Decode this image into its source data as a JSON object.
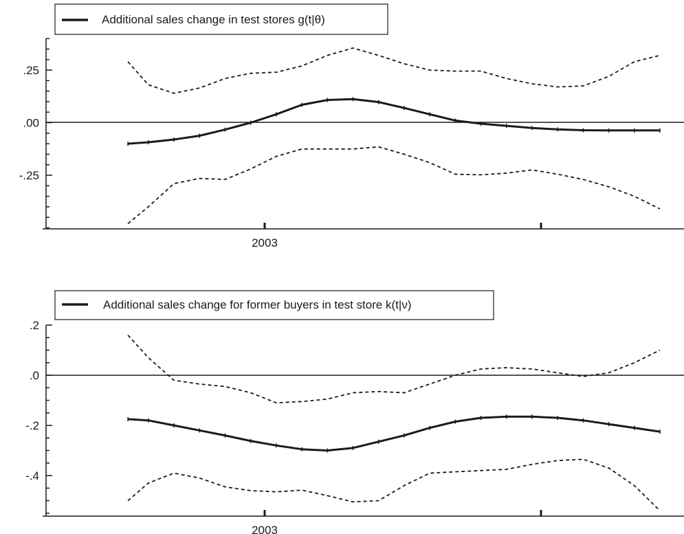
{
  "chart_data": [
    {
      "type": "line",
      "title": "",
      "xlabel": "",
      "ylabel": "",
      "x_tick_labels": [
        "2003"
      ],
      "y_tick_labels": [
        ".25",
        ".00",
        "-.25"
      ],
      "y_ticks": [
        0.25,
        0.0,
        -0.25
      ],
      "ylim": [
        -0.5,
        0.4
      ],
      "x_range": [
        0,
        12
      ],
      "zero_line": 0.0,
      "legend": {
        "label": "Additional sales change in test stores g(t|θ)",
        "placement": "top-left"
      },
      "series": [
        {
          "name": "Additional sales change in test stores g(t|θ)",
          "style": "solid",
          "x": [
            1.6,
            2.0,
            2.5,
            3.0,
            3.5,
            4.0,
            4.5,
            5.0,
            5.5,
            6.0,
            6.5,
            7.0,
            7.5,
            8.0,
            8.5,
            9.0,
            9.5,
            10.0,
            10.5,
            11.0,
            11.5,
            12.0
          ],
          "y": [
            -0.1,
            -0.093,
            -0.08,
            -0.062,
            -0.033,
            0.0,
            0.04,
            0.085,
            0.108,
            0.112,
            0.098,
            0.07,
            0.04,
            0.01,
            -0.005,
            -0.015,
            -0.025,
            -0.032,
            -0.036,
            -0.037,
            -0.037,
            -0.037
          ]
        },
        {
          "style": "dashed",
          "x": [
            1.6,
            2.0,
            2.5,
            3.0,
            3.5,
            4.0,
            4.5,
            5.0,
            5.5,
            6.0,
            6.5,
            7.0,
            7.5,
            8.0,
            8.5,
            9.0,
            9.5,
            10.0,
            10.5,
            11.0,
            11.5,
            12.0
          ],
          "y": [
            0.29,
            0.18,
            0.14,
            0.165,
            0.21,
            0.235,
            0.24,
            0.27,
            0.32,
            0.355,
            0.32,
            0.28,
            0.25,
            0.245,
            0.245,
            0.21,
            0.185,
            0.17,
            0.175,
            0.22,
            0.29,
            0.32
          ]
        },
        {
          "style": "dashed",
          "x": [
            1.6,
            2.0,
            2.5,
            3.0,
            3.5,
            4.0,
            4.5,
            5.0,
            5.5,
            6.0,
            6.5,
            7.0,
            7.5,
            8.0,
            8.5,
            9.0,
            9.5,
            10.0,
            10.5,
            11.0,
            11.5,
            12.0
          ],
          "y": [
            -0.48,
            -0.4,
            -0.29,
            -0.265,
            -0.27,
            -0.22,
            -0.16,
            -0.125,
            -0.125,
            -0.125,
            -0.115,
            -0.15,
            -0.19,
            -0.245,
            -0.248,
            -0.24,
            -0.225,
            -0.245,
            -0.27,
            -0.305,
            -0.35,
            -0.41
          ]
        }
      ]
    },
    {
      "type": "line",
      "title": "",
      "xlabel": "",
      "ylabel": "",
      "x_tick_labels": [
        "2003"
      ],
      "y_tick_labels": [
        ".2",
        ".0",
        "-.2",
        "-.4"
      ],
      "y_ticks": [
        0.2,
        0.0,
        -0.2,
        -0.4
      ],
      "ylim": [
        -0.55,
        0.2
      ],
      "x_range": [
        0,
        12
      ],
      "zero_line": 0.0,
      "legend": {
        "label": "Additional sales change for former buyers in test store k(t|ν)",
        "placement": "top-left"
      },
      "series": [
        {
          "name": "Additional sales change for former buyers in test store k(t|ν)",
          "style": "solid",
          "x": [
            1.6,
            2.0,
            2.5,
            3.0,
            3.5,
            4.0,
            4.5,
            5.0,
            5.5,
            6.0,
            6.5,
            7.0,
            7.5,
            8.0,
            8.5,
            9.0,
            9.5,
            10.0,
            10.5,
            11.0,
            11.5,
            12.0
          ],
          "y": [
            -0.175,
            -0.18,
            -0.2,
            -0.22,
            -0.24,
            -0.262,
            -0.28,
            -0.295,
            -0.3,
            -0.29,
            -0.265,
            -0.24,
            -0.21,
            -0.185,
            -0.17,
            -0.165,
            -0.165,
            -0.17,
            -0.18,
            -0.195,
            -0.21,
            -0.225
          ]
        },
        {
          "style": "dashed",
          "x": [
            1.6,
            2.0,
            2.5,
            3.0,
            3.5,
            4.0,
            4.5,
            5.0,
            5.5,
            6.0,
            6.5,
            7.0,
            7.5,
            8.0,
            8.5,
            9.0,
            9.5,
            10.0,
            10.5,
            11.0,
            11.5,
            12.0
          ],
          "y": [
            0.16,
            0.07,
            -0.02,
            -0.035,
            -0.045,
            -0.07,
            -0.11,
            -0.105,
            -0.095,
            -0.07,
            -0.065,
            -0.07,
            -0.035,
            0.0,
            0.025,
            0.03,
            0.025,
            0.01,
            -0.005,
            0.01,
            0.05,
            0.1
          ]
        },
        {
          "style": "dashed",
          "x": [
            1.6,
            2.0,
            2.5,
            3.0,
            3.5,
            4.0,
            4.5,
            5.0,
            5.5,
            6.0,
            6.5,
            7.0,
            7.5,
            8.0,
            8.5,
            9.0,
            9.5,
            10.0,
            10.5,
            11.0,
            11.5,
            12.0
          ],
          "y": [
            -0.5,
            -0.43,
            -0.39,
            -0.41,
            -0.445,
            -0.46,
            -0.465,
            -0.458,
            -0.48,
            -0.505,
            -0.5,
            -0.44,
            -0.39,
            -0.385,
            -0.38,
            -0.375,
            -0.355,
            -0.34,
            -0.335,
            -0.37,
            -0.44,
            -0.54
          ]
        }
      ]
    }
  ]
}
